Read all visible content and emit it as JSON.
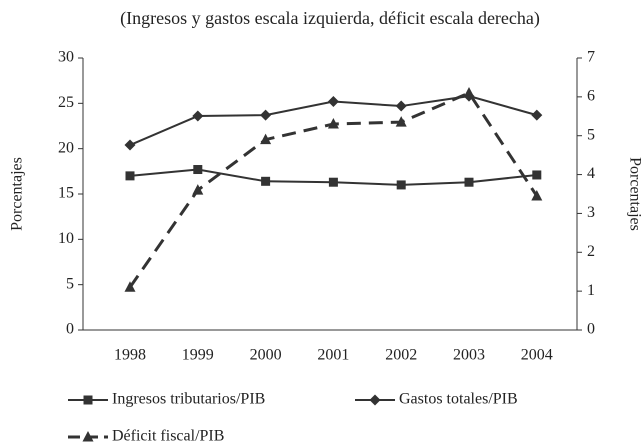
{
  "chart_data": {
    "type": "line",
    "title": "(Ingresos y gastos escala izquierda, déficit escala derecha)",
    "ylabel": "Porcentajes",
    "y2label": "Porcentajes",
    "categories": [
      "1998",
      "1999",
      "2000",
      "2001",
      "2002",
      "2003",
      "2004"
    ],
    "ylim": [
      0,
      30
    ],
    "yticks": [
      0,
      5,
      10,
      15,
      20,
      25,
      30
    ],
    "y2lim": [
      0,
      7
    ],
    "y2ticks": [
      0,
      1,
      2,
      3,
      4,
      5,
      6,
      7
    ],
    "grid": false,
    "series": [
      {
        "name": "Ingresos tributarios/PIB",
        "color": "#333333",
        "marker": "square",
        "dashed": false,
        "values": [
          17.0,
          17.7,
          16.4,
          16.3,
          16.0,
          16.3,
          17.1
        ]
      },
      {
        "name": "Gastos totales/PIB",
        "color": "#333333",
        "marker": "diamond",
        "dashed": false,
        "values": [
          20.4,
          23.6,
          23.7,
          25.2,
          24.7,
          25.8,
          23.7
        ]
      },
      {
        "name": "Déficit fiscal/PIB",
        "color": "#333333",
        "marker": "triangle",
        "dashed": true,
        "axis": "y2",
        "values": [
          1.1,
          3.6,
          4.9,
          5.3,
          5.35,
          6.1,
          3.45
        ]
      }
    ]
  }
}
